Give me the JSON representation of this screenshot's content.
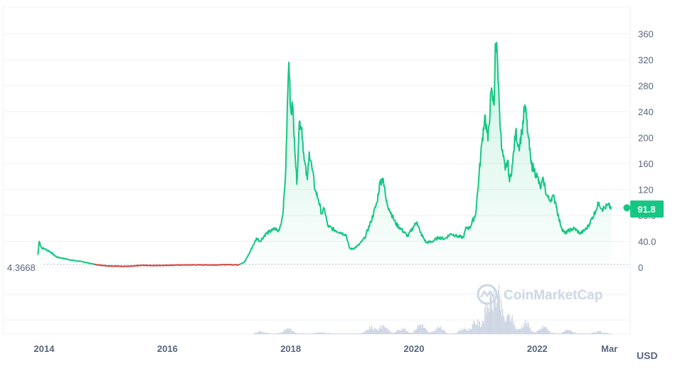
{
  "chart_data": {
    "type": "area",
    "currency_label": "USD",
    "start_price_label": "4.3668",
    "current_price_label": "91.8",
    "watermark": "CoinMarketCap",
    "x_tick_labels": [
      "2014",
      "2016",
      "2018",
      "2020",
      "2022",
      "Mar"
    ],
    "y_tick_labels": [
      "360",
      "320",
      "280",
      "240",
      "200",
      "160",
      "120",
      "80.0",
      "40.0",
      "0"
    ],
    "ylim": [
      0,
      400
    ],
    "xlim": [
      2013.7,
      2023.25
    ],
    "baseline": 4.3668,
    "colors": {
      "up_line": "#16c784",
      "down_line": "#d7413a",
      "grid": "#eff2f5",
      "axis_text": "#58667e",
      "volume": "#cfd6e4",
      "watermark": "#cfd6e4",
      "price_tag_bg": "#16c784",
      "price_tag_text": "#ffffff"
    },
    "series": [
      {
        "values": [
          [
            2013.9,
            20
          ],
          [
            2013.92,
            40
          ],
          [
            2013.96,
            30
          ],
          [
            2014.02,
            28
          ],
          [
            2014.1,
            24
          ],
          [
            2014.2,
            16
          ],
          [
            2014.3,
            14
          ],
          [
            2014.45,
            11
          ],
          [
            2014.6,
            9
          ],
          [
            2014.75,
            6
          ],
          [
            2014.85,
            4
          ],
          [
            2015.0,
            2.5
          ],
          [
            2015.2,
            1.8
          ],
          [
            2015.4,
            1.6
          ],
          [
            2015.6,
            3.2
          ],
          [
            2015.8,
            2.8
          ],
          [
            2016.0,
            3.2
          ],
          [
            2016.2,
            3.6
          ],
          [
            2016.5,
            3.8
          ],
          [
            2016.8,
            3.7
          ],
          [
            2017.0,
            4.2
          ],
          [
            2017.15,
            3.8
          ],
          [
            2017.25,
            8
          ],
          [
            2017.32,
            20
          ],
          [
            2017.38,
            32
          ],
          [
            2017.45,
            45
          ],
          [
            2017.5,
            40
          ],
          [
            2017.6,
            52
          ],
          [
            2017.7,
            57
          ],
          [
            2017.75,
            60
          ],
          [
            2017.8,
            55
          ],
          [
            2017.85,
            70
          ],
          [
            2017.88,
            90
          ],
          [
            2017.92,
            150
          ],
          [
            2017.95,
            260
          ],
          [
            2017.97,
            316
          ],
          [
            2018.0,
            245
          ],
          [
            2018.03,
            250
          ],
          [
            2018.06,
            200
          ],
          [
            2018.1,
            128
          ],
          [
            2018.14,
            225
          ],
          [
            2018.18,
            215
          ],
          [
            2018.22,
            165
          ],
          [
            2018.27,
            135
          ],
          [
            2018.3,
            178
          ],
          [
            2018.35,
            150
          ],
          [
            2018.4,
            118
          ],
          [
            2018.45,
            105
          ],
          [
            2018.5,
            83
          ],
          [
            2018.55,
            90
          ],
          [
            2018.6,
            64
          ],
          [
            2018.7,
            58
          ],
          [
            2018.8,
            54
          ],
          [
            2018.9,
            50
          ],
          [
            2018.95,
            30
          ],
          [
            2019.0,
            28
          ],
          [
            2019.1,
            34
          ],
          [
            2019.2,
            45
          ],
          [
            2019.3,
            70
          ],
          [
            2019.4,
            100
          ],
          [
            2019.45,
            132
          ],
          [
            2019.5,
            137
          ],
          [
            2019.55,
            102
          ],
          [
            2019.6,
            90
          ],
          [
            2019.7,
            68
          ],
          [
            2019.8,
            58
          ],
          [
            2019.9,
            48
          ],
          [
            2020.0,
            64
          ],
          [
            2020.05,
            70
          ],
          [
            2020.1,
            54
          ],
          [
            2020.2,
            38
          ],
          [
            2020.3,
            40
          ],
          [
            2020.4,
            46
          ],
          [
            2020.5,
            44
          ],
          [
            2020.6,
            52
          ],
          [
            2020.7,
            48
          ],
          [
            2020.8,
            46
          ],
          [
            2020.85,
            62
          ],
          [
            2020.9,
            60
          ],
          [
            2021.0,
            82
          ],
          [
            2021.05,
            135
          ],
          [
            2021.1,
            190
          ],
          [
            2021.15,
            235
          ],
          [
            2021.2,
            195
          ],
          [
            2021.25,
            270
          ],
          [
            2021.3,
            250
          ],
          [
            2021.32,
            345
          ],
          [
            2021.35,
            330
          ],
          [
            2021.38,
            260
          ],
          [
            2021.42,
            185
          ],
          [
            2021.48,
            150
          ],
          [
            2021.52,
            165
          ],
          [
            2021.55,
            132
          ],
          [
            2021.6,
            160
          ],
          [
            2021.65,
            210
          ],
          [
            2021.7,
            185
          ],
          [
            2021.75,
            208
          ],
          [
            2021.8,
            250
          ],
          [
            2021.85,
            205
          ],
          [
            2021.9,
            160
          ],
          [
            2021.95,
            150
          ],
          [
            2022.0,
            140
          ],
          [
            2022.05,
            122
          ],
          [
            2022.1,
            135
          ],
          [
            2022.15,
            112
          ],
          [
            2022.2,
            103
          ],
          [
            2022.25,
            110
          ],
          [
            2022.3,
            100
          ],
          [
            2022.35,
            75
          ],
          [
            2022.4,
            60
          ],
          [
            2022.45,
            52
          ],
          [
            2022.5,
            56
          ],
          [
            2022.6,
            60
          ],
          [
            2022.7,
            52
          ],
          [
            2022.8,
            60
          ],
          [
            2022.85,
            68
          ],
          [
            2022.95,
            88
          ],
          [
            2023.0,
            100
          ],
          [
            2023.05,
            90
          ],
          [
            2023.1,
            92
          ],
          [
            2023.15,
            96
          ],
          [
            2023.2,
            91.8
          ]
        ]
      }
    ],
    "volume": {
      "x_range": [
        2017.4,
        2023.2
      ],
      "relative_peaks": [
        [
          2017.5,
          0.05
        ],
        [
          2017.95,
          0.12
        ],
        [
          2018.5,
          0.03
        ],
        [
          2019.3,
          0.15
        ],
        [
          2019.5,
          0.22
        ],
        [
          2019.8,
          0.14
        ],
        [
          2020.1,
          0.25
        ],
        [
          2020.4,
          0.16
        ],
        [
          2020.8,
          0.12
        ],
        [
          2021.0,
          0.3
        ],
        [
          2021.2,
          0.75
        ],
        [
          2021.35,
          1.0
        ],
        [
          2021.55,
          0.45
        ],
        [
          2021.8,
          0.3
        ],
        [
          2022.1,
          0.18
        ],
        [
          2022.5,
          0.08
        ],
        [
          2023.0,
          0.05
        ]
      ]
    }
  }
}
